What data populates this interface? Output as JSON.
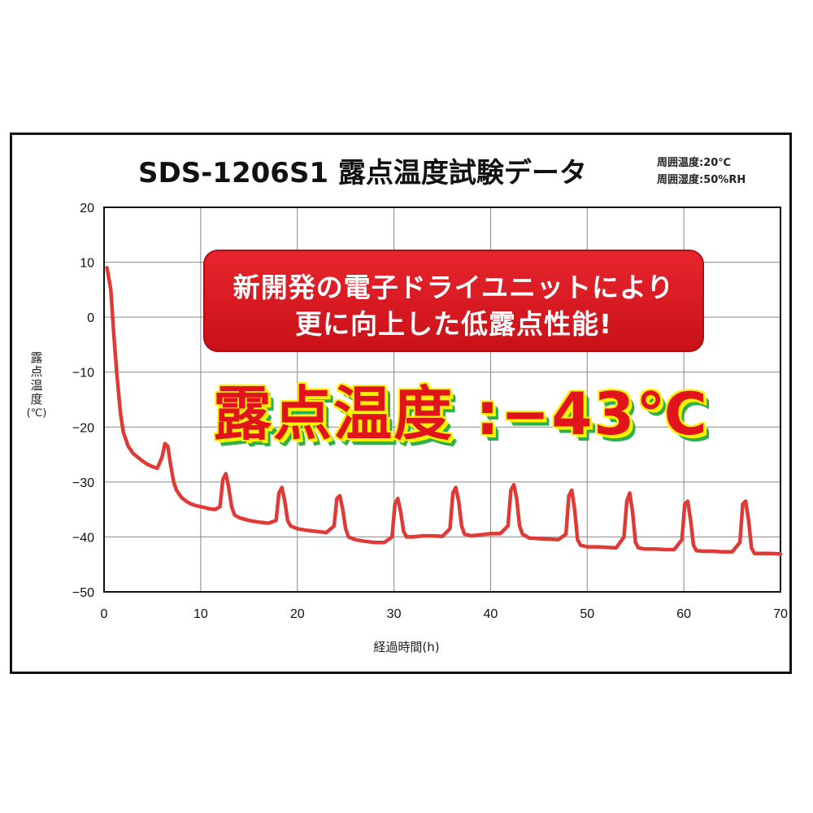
{
  "chart_data": {
    "type": "line",
    "title": "SDS-1206S1 露点温度試験データ",
    "conditions": [
      "周囲温度:20℃",
      "周囲湿度:50%RH"
    ],
    "xlabel": "経過時間(h)",
    "ylabel": [
      "露",
      "点",
      "温",
      "度",
      "(℃)"
    ],
    "xlim": [
      0,
      70
    ],
    "ylim": [
      -50,
      20
    ],
    "xticks": [
      "0",
      "10",
      "20",
      "30",
      "40",
      "50",
      "60",
      "70"
    ],
    "yticks": [
      "20",
      "10",
      "0",
      "−10",
      "−20",
      "−30",
      "−40",
      "−50"
    ],
    "grid": true,
    "series": [
      {
        "color": "#e03a36",
        "x": [
          0.3,
          0.7,
          1.0,
          1.3,
          1.7,
          2.0,
          2.5,
          3.0,
          3.5,
          4.0,
          4.5,
          5.0,
          5.5,
          6.0,
          6.3,
          6.6,
          6.9,
          7.2,
          7.5,
          8.0,
          8.5,
          9.0,
          9.5,
          10.0,
          10.5,
          11.0,
          11.5,
          12.0,
          12.3,
          12.6,
          12.9,
          13.2,
          13.5,
          14.0,
          15.0,
          16.0,
          17.0,
          17.8,
          18.1,
          18.4,
          18.7,
          19.0,
          19.3,
          20.0,
          21.0,
          22.0,
          23.0,
          23.8,
          24.1,
          24.4,
          24.7,
          25.0,
          25.3,
          26.0,
          27.0,
          28.0,
          29.0,
          29.8,
          30.1,
          30.4,
          30.7,
          31.0,
          31.3,
          32.0,
          33.0,
          34.0,
          35.0,
          35.8,
          36.1,
          36.4,
          36.7,
          37.0,
          37.3,
          38.0,
          39.0,
          40.0,
          41.0,
          41.8,
          42.1,
          42.4,
          42.7,
          43.0,
          43.3,
          44.0,
          45.0,
          46.0,
          47.0,
          47.8,
          48.1,
          48.4,
          48.7,
          49.0,
          49.3,
          50.0,
          51.0,
          52.0,
          53.0,
          53.8,
          54.1,
          54.4,
          54.7,
          55.0,
          55.3,
          56.0,
          57.0,
          58.0,
          59.0,
          59.8,
          60.1,
          60.4,
          60.7,
          61.0,
          61.3,
          62.0,
          63.0,
          64.0,
          65.0,
          65.8,
          66.1,
          66.4,
          66.7,
          67.0,
          67.3,
          68.0,
          69.0,
          70.0
        ],
        "y": [
          9.0,
          5.0,
          -3.0,
          -10.0,
          -17.5,
          -21.0,
          -23.5,
          -24.8,
          -25.5,
          -26.2,
          -26.8,
          -27.2,
          -27.5,
          -25.5,
          -23.0,
          -23.5,
          -27.0,
          -30.0,
          -31.5,
          -32.8,
          -33.5,
          -34.0,
          -34.3,
          -34.5,
          -34.7,
          -34.9,
          -35.0,
          -34.5,
          -29.5,
          -28.5,
          -31.0,
          -34.5,
          -36.0,
          -36.5,
          -37.0,
          -37.3,
          -37.5,
          -37.0,
          -32.0,
          -31.0,
          -33.5,
          -37.0,
          -38.0,
          -38.5,
          -38.8,
          -39.0,
          -39.2,
          -38.0,
          -33.0,
          -32.5,
          -35.0,
          -38.5,
          -40.0,
          -40.5,
          -40.8,
          -41.0,
          -41.0,
          -40.0,
          -34.0,
          -33.0,
          -35.5,
          -39.0,
          -40.0,
          -40.0,
          -39.8,
          -39.8,
          -39.9,
          -38.5,
          -32.0,
          -31.0,
          -33.5,
          -38.0,
          -39.5,
          -39.8,
          -39.6,
          -39.4,
          -39.4,
          -38.0,
          -31.5,
          -30.5,
          -33.0,
          -38.0,
          -39.5,
          -40.2,
          -40.3,
          -40.4,
          -40.5,
          -39.5,
          -32.5,
          -31.5,
          -35.0,
          -40.5,
          -41.5,
          -41.8,
          -41.8,
          -41.9,
          -42.0,
          -40.0,
          -33.5,
          -32.0,
          -35.5,
          -41.0,
          -42.0,
          -42.2,
          -42.2,
          -42.3,
          -42.3,
          -40.5,
          -34.0,
          -33.5,
          -37.0,
          -41.5,
          -42.5,
          -42.6,
          -42.6,
          -42.7,
          -42.7,
          -41.0,
          -34.0,
          -33.5,
          -37.0,
          -42.0,
          -43.0,
          -43.0,
          -43.0,
          -43.1
        ]
      }
    ],
    "annotations": {
      "banner_line1": "新開発の電子ドライユニットにより",
      "banner_line2": "更に向上した低露点性能!",
      "highlight": "露点温度 :−43℃"
    }
  }
}
